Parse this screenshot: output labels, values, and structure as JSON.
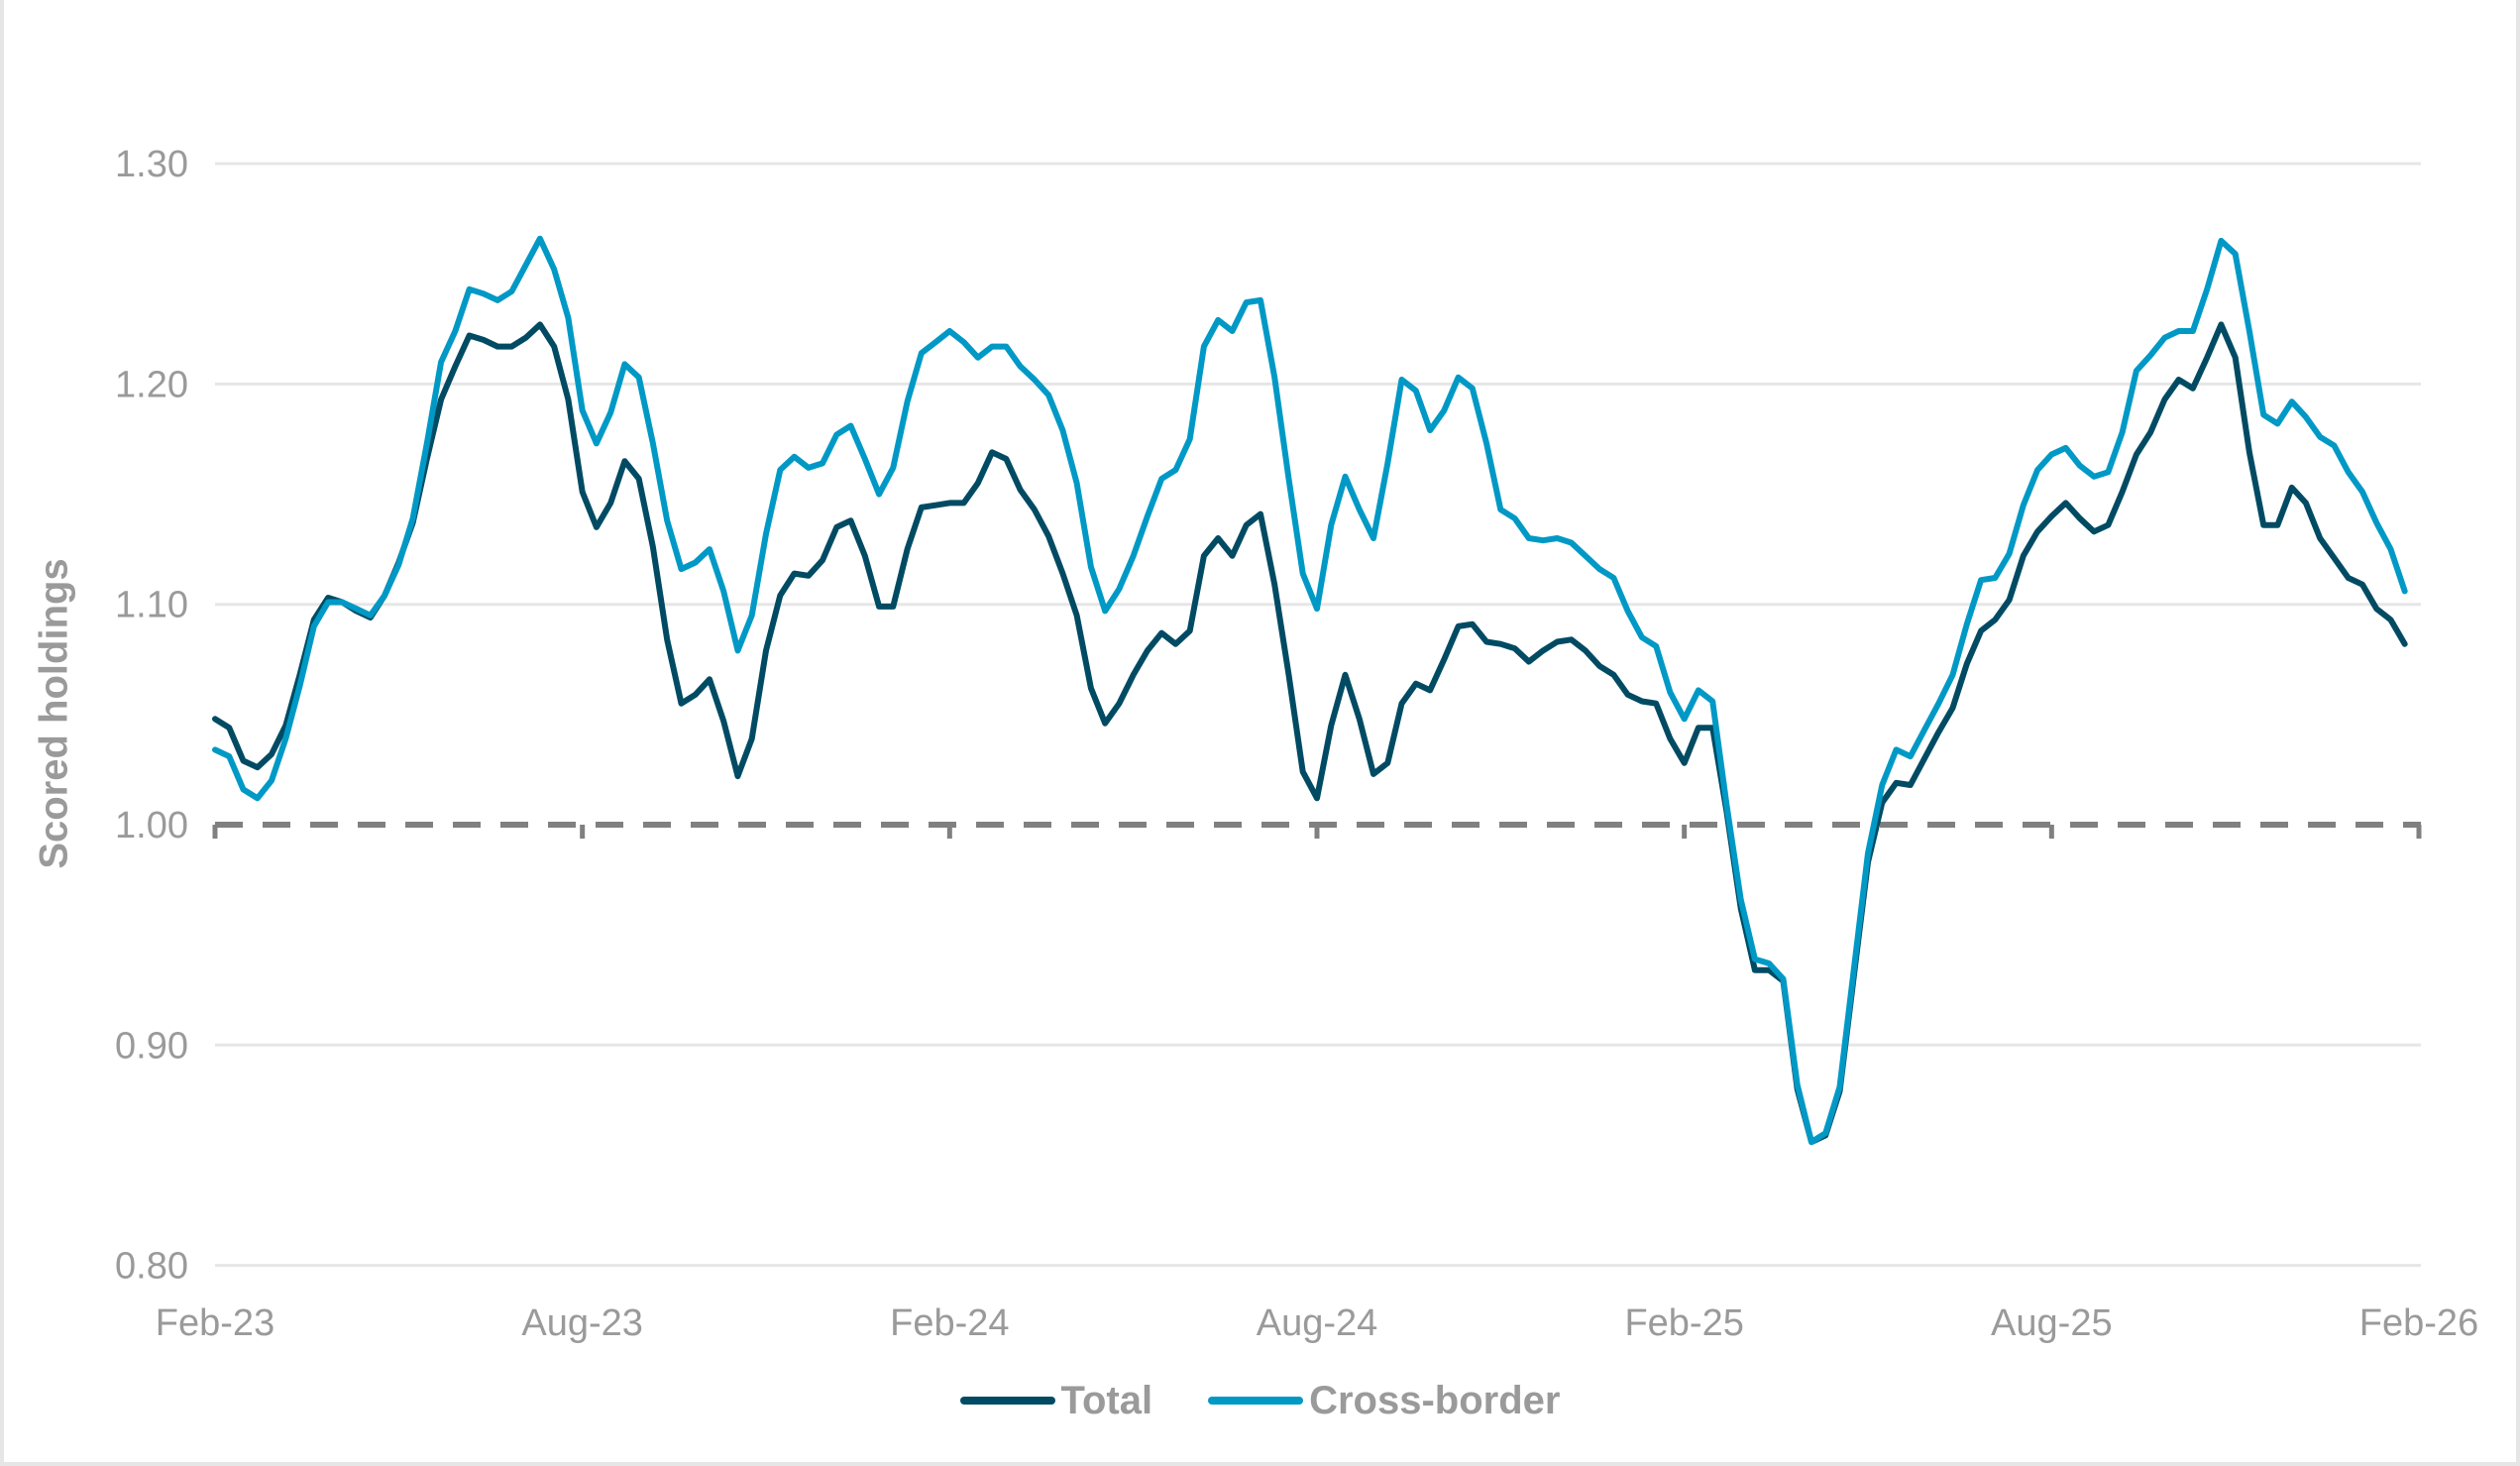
{
  "chart_data": {
    "type": "line",
    "title": "",
    "xlabel": "",
    "ylabel": "Scored holdings",
    "ylim": [
      0.8,
      1.3
    ],
    "yticks": [
      "1.30",
      "1.20",
      "1.10",
      "1.00",
      "0.90",
      "0.80"
    ],
    "ytick_values": [
      1.3,
      1.2,
      1.1,
      1.0,
      0.9,
      0.8
    ],
    "xticks": [
      "Feb-23",
      "Aug-23",
      "Feb-24",
      "Aug-24",
      "Feb-25",
      "Aug-25",
      "Feb-26"
    ],
    "x_range": [
      "Feb-23",
      "Feb-26"
    ],
    "frequency": "weekly",
    "grid": true,
    "reference_line": {
      "value": 1.0,
      "style": "dashed",
      "color": "#808080"
    },
    "legend_position": "bottom",
    "series": [
      {
        "name": "Total",
        "color": "#004B63",
        "values": [
          1.048,
          1.044,
          1.029,
          1.026,
          1.032,
          1.045,
          1.068,
          1.093,
          1.103,
          1.101,
          1.097,
          1.094,
          1.104,
          1.119,
          1.137,
          1.166,
          1.193,
          1.208,
          1.222,
          1.22,
          1.217,
          1.217,
          1.221,
          1.227,
          1.217,
          1.193,
          1.151,
          1.135,
          1.146,
          1.165,
          1.157,
          1.126,
          1.084,
          1.055,
          1.059,
          1.066,
          1.047,
          1.022,
          1.039,
          1.079,
          1.104,
          1.114,
          1.113,
          1.12,
          1.135,
          1.138,
          1.122,
          1.099,
          1.099,
          1.125,
          1.144,
          1.145,
          1.146,
          1.146,
          1.155,
          1.169,
          1.166,
          1.152,
          1.143,
          1.131,
          1.114,
          1.095,
          1.062,
          1.046,
          1.055,
          1.068,
          1.079,
          1.087,
          1.082,
          1.088,
          1.122,
          1.13,
          1.122,
          1.136,
          1.141,
          1.109,
          1.068,
          1.024,
          1.012,
          1.045,
          1.068,
          1.048,
          1.023,
          1.028,
          1.055,
          1.064,
          1.061,
          1.075,
          1.09,
          1.091,
          1.083,
          1.082,
          1.08,
          1.074,
          1.079,
          1.083,
          1.084,
          1.079,
          1.072,
          1.068,
          1.059,
          1.056,
          1.055,
          1.039,
          1.028,
          1.044,
          1.044,
          1.006,
          0.962,
          0.934,
          0.934,
          0.929,
          0.88,
          0.856,
          0.859,
          0.879,
          0.931,
          0.983,
          1.01,
          1.019,
          1.018,
          1.03,
          1.042,
          1.053,
          1.073,
          1.088,
          1.093,
          1.102,
          1.122,
          1.133,
          1.14,
          1.146,
          1.139,
          1.133,
          1.136,
          1.151,
          1.168,
          1.178,
          1.193,
          1.202,
          1.198,
          1.212,
          1.227,
          1.212,
          1.169,
          1.136,
          1.136,
          1.153,
          1.146,
          1.13,
          1.121,
          1.112,
          1.109,
          1.098,
          1.093,
          1.082
        ]
      },
      {
        "name": "Cross-border",
        "color": "#0099C6",
        "values": [
          1.034,
          1.031,
          1.016,
          1.012,
          1.02,
          1.039,
          1.063,
          1.09,
          1.101,
          1.101,
          1.098,
          1.095,
          1.104,
          1.118,
          1.139,
          1.173,
          1.21,
          1.224,
          1.243,
          1.241,
          1.238,
          1.242,
          1.254,
          1.266,
          1.252,
          1.23,
          1.188,
          1.173,
          1.187,
          1.209,
          1.203,
          1.173,
          1.138,
          1.116,
          1.119,
          1.125,
          1.106,
          1.079,
          1.095,
          1.132,
          1.161,
          1.167,
          1.162,
          1.164,
          1.177,
          1.181,
          1.166,
          1.15,
          1.162,
          1.192,
          1.214,
          1.219,
          1.224,
          1.219,
          1.212,
          1.217,
          1.217,
          1.208,
          1.202,
          1.195,
          1.179,
          1.155,
          1.117,
          1.097,
          1.107,
          1.122,
          1.14,
          1.157,
          1.161,
          1.175,
          1.217,
          1.229,
          1.224,
          1.237,
          1.238,
          1.203,
          1.157,
          1.114,
          1.098,
          1.136,
          1.158,
          1.143,
          1.13,
          1.164,
          1.202,
          1.197,
          1.179,
          1.188,
          1.203,
          1.198,
          1.173,
          1.143,
          1.139,
          1.13,
          1.129,
          1.13,
          1.128,
          1.122,
          1.116,
          1.112,
          1.097,
          1.085,
          1.081,
          1.06,
          1.048,
          1.061,
          1.056,
          1.009,
          0.966,
          0.939,
          0.937,
          0.93,
          0.882,
          0.856,
          0.86,
          0.881,
          0.934,
          0.987,
          1.018,
          1.034,
          1.031,
          1.043,
          1.055,
          1.068,
          1.091,
          1.111,
          1.112,
          1.123,
          1.145,
          1.161,
          1.168,
          1.171,
          1.163,
          1.158,
          1.16,
          1.178,
          1.206,
          1.213,
          1.221,
          1.224,
          1.224,
          1.243,
          1.265,
          1.259,
          1.224,
          1.186,
          1.182,
          1.192,
          1.185,
          1.176,
          1.172,
          1.16,
          1.151,
          1.137,
          1.125,
          1.106
        ]
      }
    ]
  },
  "legend": {
    "items": [
      {
        "label": "Total",
        "color": "#004B63"
      },
      {
        "label": "Cross-border",
        "color": "#0099C6"
      }
    ]
  },
  "axes": {
    "y_title": "Scored holdings"
  }
}
